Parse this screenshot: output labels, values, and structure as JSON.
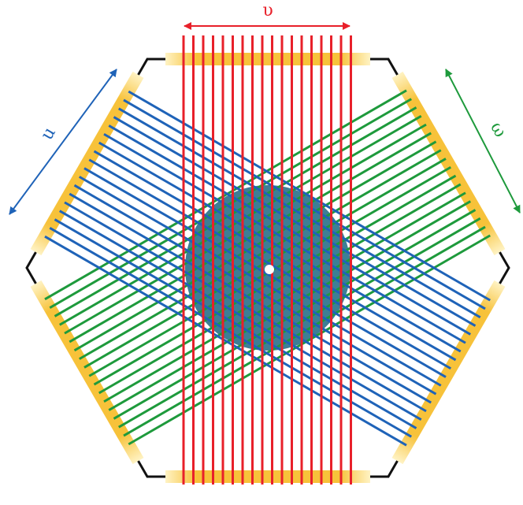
{
  "arrows": [
    {
      "label": "υ"
    },
    {
      "label": "u"
    },
    {
      "label": "ω"
    }
  ]
}
